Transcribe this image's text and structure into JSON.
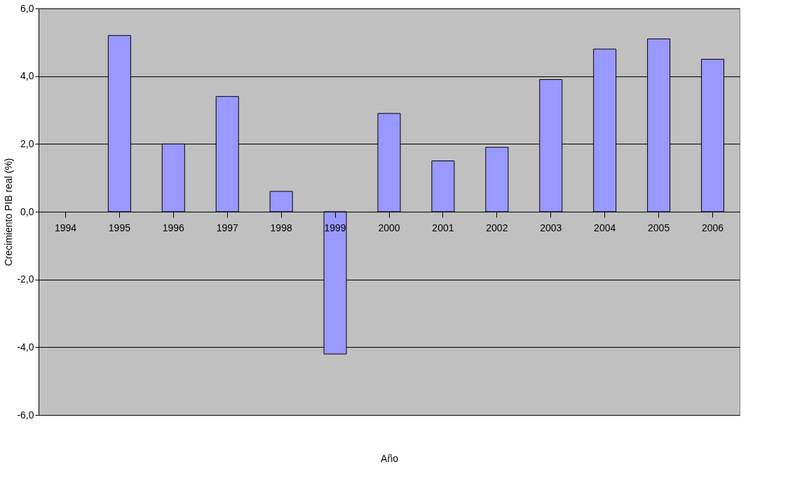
{
  "chart_data": {
    "type": "bar",
    "xlabel": "Año",
    "ylabel": "Crecimiento PIB real (%)",
    "categories": [
      "1994",
      "1995",
      "1996",
      "1997",
      "1998",
      "1999",
      "2000",
      "2001",
      "2002",
      "2003",
      "2004",
      "2005",
      "2006"
    ],
    "values": [
      null,
      5.2,
      2.0,
      3.4,
      0.6,
      -4.2,
      2.9,
      1.5,
      1.9,
      3.9,
      4.8,
      5.1,
      4.5
    ],
    "color": "#9999ff",
    "ylim": [
      -6,
      6
    ],
    "yticks": [
      {
        "value": -6,
        "label": "-6,0"
      },
      {
        "value": -4,
        "label": "-4,0"
      },
      {
        "value": -2,
        "label": "-2,0"
      },
      {
        "value": 0,
        "label": "0,0"
      },
      {
        "value": 2,
        "label": "2,0"
      },
      {
        "value": 4,
        "label": "4,0"
      },
      {
        "value": 6,
        "label": "6,0"
      }
    ],
    "grid": "y"
  }
}
